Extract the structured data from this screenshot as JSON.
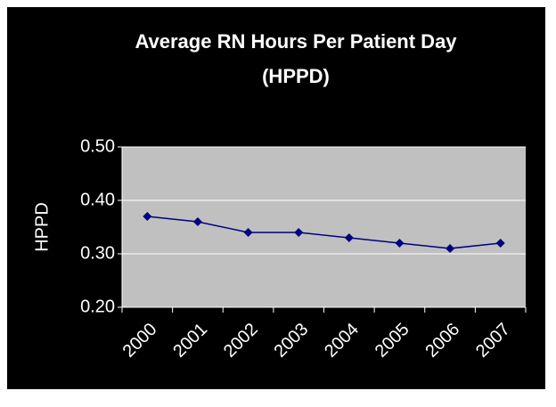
{
  "chart_data": {
    "type": "line",
    "title": [
      "Average RN Hours Per Patient Day",
      "(HPPD)"
    ],
    "y_label": "HPPD",
    "categories": [
      "2000",
      "2001",
      "2002",
      "2003",
      "2004",
      "2005",
      "2006",
      "2007"
    ],
    "series": [
      {
        "name": "HPPD",
        "color": "#000080",
        "values": [
          0.37,
          0.36,
          0.34,
          0.34,
          0.33,
          0.32,
          0.31,
          0.32
        ]
      }
    ],
    "ylim": [
      0.2,
      0.5
    ],
    "yticks": [
      {
        "value": 0.2,
        "label": "0.20"
      },
      {
        "value": 0.3,
        "label": "0.30"
      },
      {
        "value": 0.4,
        "label": "0.40"
      },
      {
        "value": 0.5,
        "label": "0.50"
      }
    ],
    "grid": true,
    "plot_color": "#c0c0c0",
    "background": "#000000"
  }
}
